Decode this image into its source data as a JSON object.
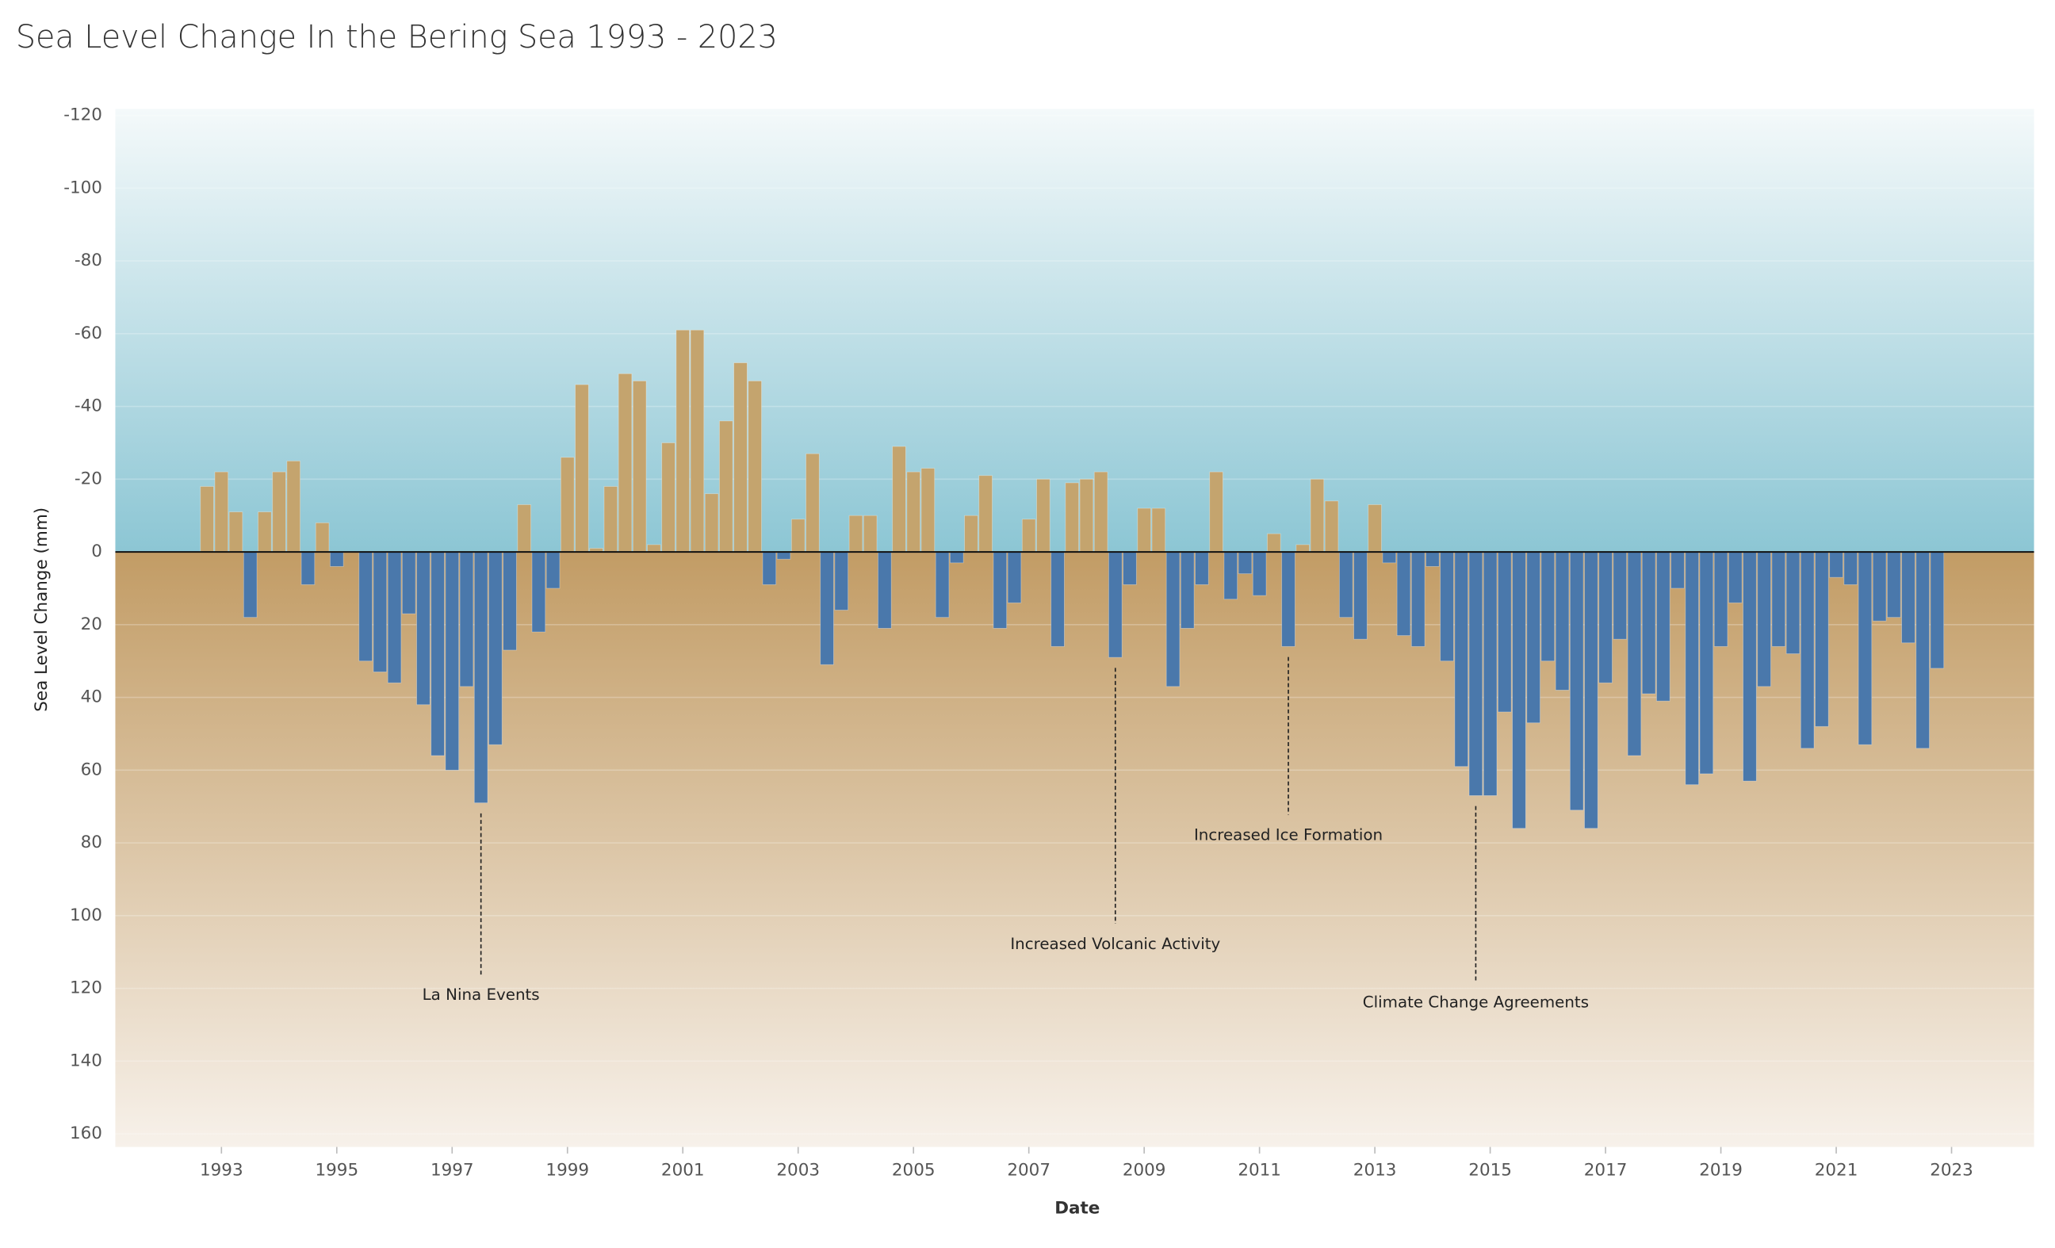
{
  "chart_data": {
    "type": "bar",
    "title": "Sea Level Change In the Bering Sea 1993 - 2023",
    "x_label": "Date",
    "y_label": "Sea Level Change (mm)",
    "x": [
      1992.75,
      1993,
      1993.25,
      1993.5,
      1993.75,
      1994,
      1994.25,
      1994.5,
      1994.75,
      1995,
      1995.5,
      1995.75,
      1996,
      1996.25,
      1996.5,
      1996.75,
      1997,
      1997.25,
      1997.5,
      1997.75,
      1998,
      1998.25,
      1998.5,
      1998.75,
      1999,
      1999.25,
      1999.5,
      1999.75,
      2000,
      2000.25,
      2000.5,
      2000.75,
      2001,
      2001.25,
      2001.5,
      2001.75,
      2002,
      2002.25,
      2002.5,
      2002.75,
      2003,
      2003.25,
      2003.5,
      2003.75,
      2004,
      2004.25,
      2004.5,
      2004.75,
      2005,
      2005.25,
      2005.5,
      2005.75,
      2006,
      2006.25,
      2006.5,
      2006.75,
      2007,
      2007.25,
      2007.5,
      2007.75,
      2008,
      2008.25,
      2008.5,
      2008.75,
      2009,
      2009.25,
      2009.5,
      2009.75,
      2010,
      2010.25,
      2010.5,
      2010.75,
      2011,
      2011.25,
      2011.5,
      2011.75,
      2012,
      2012.25,
      2012.5,
      2012.75,
      2013,
      2013.25,
      2013.5,
      2013.75,
      2014,
      2014.25,
      2014.5,
      2014.75,
      2015,
      2015.25,
      2015.5,
      2015.75,
      2016,
      2016.25,
      2016.5,
      2016.75,
      2017,
      2017.25,
      2017.5,
      2017.75,
      2018,
      2018.25,
      2018.5,
      2018.75,
      2019,
      2019.25,
      2019.5,
      2019.75,
      2020,
      2020.25,
      2020.5,
      2020.75,
      2021,
      2021.25,
      2021.5,
      2021.75,
      2022,
      2022.25,
      2022.5,
      2022.75
    ],
    "values": [
      -18,
      -22,
      -11,
      18,
      -11,
      -22,
      -25,
      9,
      -8,
      4,
      30,
      33,
      36,
      17,
      42,
      56,
      60,
      37,
      69,
      53,
      27,
      -13,
      22,
      10,
      -26,
      -46,
      -1,
      -18,
      -49,
      -47,
      -2,
      -30,
      -61,
      -61,
      -16,
      -36,
      -52,
      -47,
      9,
      2,
      -9,
      -27,
      31,
      16,
      -10,
      -10,
      21,
      -29,
      -22,
      -23,
      18,
      3,
      -10,
      -21,
      21,
      14,
      -9,
      -20,
      26,
      -19,
      -20,
      -22,
      29,
      9,
      -12,
      -12,
      37,
      21,
      9,
      -22,
      13,
      6,
      12,
      -5,
      26,
      -2,
      -20,
      -14,
      18,
      24,
      -13,
      3,
      23,
      26,
      4,
      30,
      59,
      67,
      67,
      44,
      76,
      47,
      30,
      38,
      71,
      76,
      36,
      24,
      56,
      39,
      41,
      10,
      64,
      61,
      26,
      14,
      63,
      37,
      26,
      28,
      54,
      48,
      7,
      9,
      53,
      19,
      18,
      25,
      54,
      32
    ],
    "colors": [
      "#c4a46e",
      "#4a78ab"
    ],
    "xlim": [
      1991.16,
      2024.43
    ],
    "xticks": [
      1993,
      1995,
      1997,
      1999,
      2001,
      2003,
      2005,
      2007,
      2009,
      2011,
      2013,
      2015,
      2017,
      2019,
      2021,
      2023
    ],
    "ylim": [
      -120,
      160
    ],
    "yticks": [
      -120,
      -100,
      -80,
      -60,
      -40,
      -20,
      0,
      20,
      40,
      60,
      80,
      100,
      120,
      140,
      160
    ],
    "grid": true,
    "annotations": [
      {
        "text": "La Nina Events",
        "x": 1997.5,
        "y": 122
      },
      {
        "text": "Increased Volcanic Activity",
        "x": 2008.5,
        "y": 108
      },
      {
        "text": "Increased Ice Formation",
        "x": 2011.5,
        "y": 78
      },
      {
        "text": "Climate Change Agreements",
        "x": 2014.75,
        "y": 124
      }
    ]
  }
}
